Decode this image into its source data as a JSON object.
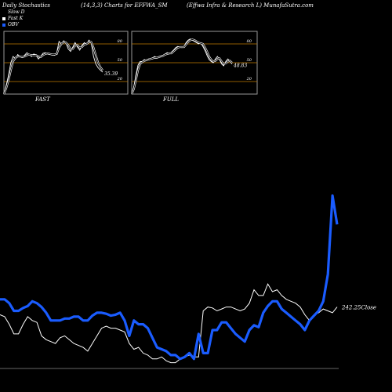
{
  "header": {
    "left": "Daily Stochastics",
    "middle": "(14,3,3) Charts for EFFWA_SM",
    "right": "(Effwa Infra & Research L) MunafaSutra.com"
  },
  "legend": [
    {
      "label": "Slow D",
      "color": "#000000"
    },
    {
      "label": "Fast K",
      "color": "#ffffff"
    },
    {
      "label": "OBV",
      "color": "#1a5cff"
    }
  ],
  "colors": {
    "background": "#000000",
    "obv": "#1a5cff",
    "price": "#ffffff",
    "level_line": "#c27a00"
  },
  "chart_data": [
    {
      "type": "line",
      "title": "FAST",
      "ylim": [
        0,
        100
      ],
      "levels": [
        20,
        50,
        80
      ],
      "tick_labels": [
        "80",
        "50",
        "20"
      ],
      "last_value_label": "35.39",
      "series": [
        {
          "name": "Fast K",
          "values": [
            0,
            14,
            30,
            50,
            60,
            56,
            63,
            60,
            58,
            62,
            66,
            63,
            60,
            64,
            62,
            56,
            60,
            65,
            66,
            64,
            63,
            64,
            62,
            66,
            84,
            80,
            85,
            82,
            72,
            68,
            75,
            82,
            75,
            70,
            78,
            82,
            79,
            86,
            82,
            60,
            48,
            42,
            38,
            35
          ]
        },
        {
          "name": "Slow D",
          "values": [
            0,
            9,
            22,
            38,
            52,
            58,
            60,
            60,
            59,
            60,
            62,
            63,
            62,
            62,
            62,
            60,
            59,
            62,
            64,
            65,
            64,
            63,
            63,
            64,
            74,
            80,
            83,
            82,
            78,
            72,
            72,
            77,
            78,
            74,
            75,
            79,
            80,
            83,
            83,
            74,
            62,
            50,
            43,
            38
          ]
        }
      ]
    },
    {
      "type": "line",
      "title": "FULL",
      "ylim": [
        0,
        100
      ],
      "levels": [
        20,
        50,
        80
      ],
      "tick_labels": [
        "80",
        "50",
        "20"
      ],
      "last_value_label": "48.83",
      "series": [
        {
          "name": "Fast K",
          "values": [
            0,
            12,
            30,
            46,
            52,
            52,
            55,
            54,
            56,
            56,
            58,
            60,
            58,
            60,
            61,
            62,
            64,
            66,
            64,
            67,
            70,
            74,
            76,
            75,
            74,
            76,
            82,
            86,
            88,
            86,
            84,
            82,
            80,
            82,
            76,
            70,
            62,
            55,
            52,
            50,
            56,
            60,
            55,
            48,
            45,
            52,
            56,
            52,
            48
          ]
        },
        {
          "name": "Slow D",
          "values": [
            0,
            8,
            22,
            38,
            48,
            51,
            53,
            54,
            55,
            56,
            57,
            58,
            58,
            59,
            60,
            61,
            63,
            64,
            65,
            65,
            68,
            71,
            74,
            75,
            75,
            75,
            79,
            83,
            86,
            87,
            86,
            84,
            82,
            81,
            80,
            75,
            68,
            60,
            55,
            52,
            53,
            56,
            57,
            52,
            48,
            49,
            52,
            53,
            50
          ]
        }
      ]
    },
    {
      "type": "line",
      "title": "",
      "last_value_label": "242.25Close",
      "series": [
        {
          "name": "OBV",
          "values": [
            52,
            52,
            48,
            40,
            40,
            43,
            45,
            50,
            48,
            44,
            38,
            30,
            30,
            30,
            32,
            32,
            34,
            34,
            30,
            30,
            35,
            38,
            38,
            37,
            35,
            36,
            38,
            30,
            14,
            30,
            26,
            26,
            22,
            12,
            2,
            0,
            -2,
            -6,
            -6,
            -10,
            -8,
            -4,
            -10,
            16,
            -4,
            -4,
            20,
            20,
            28,
            28,
            22,
            16,
            12,
            8,
            20,
            25,
            23,
            38,
            45,
            50,
            50,
            42,
            38,
            34,
            30,
            26,
            20,
            30,
            35,
            40,
            50,
            78,
            160,
            130
          ]
        },
        {
          "name": "Price",
          "values": [
            36,
            34,
            26,
            16,
            16,
            26,
            34,
            30,
            28,
            14,
            10,
            8,
            6,
            12,
            14,
            10,
            6,
            4,
            2,
            -2,
            6,
            14,
            22,
            24,
            22,
            22,
            20,
            18,
            6,
            0,
            2,
            -4,
            -6,
            -10,
            -10,
            -8,
            -12,
            -14,
            -14,
            -10,
            -8,
            -6,
            -8,
            -8,
            40,
            44,
            43,
            40,
            42,
            44,
            44,
            42,
            40,
            42,
            48,
            62,
            56,
            56,
            68,
            60,
            62,
            56,
            52,
            50,
            48,
            44,
            36,
            30,
            36,
            38,
            42,
            40,
            38,
            44
          ]
        }
      ]
    }
  ]
}
